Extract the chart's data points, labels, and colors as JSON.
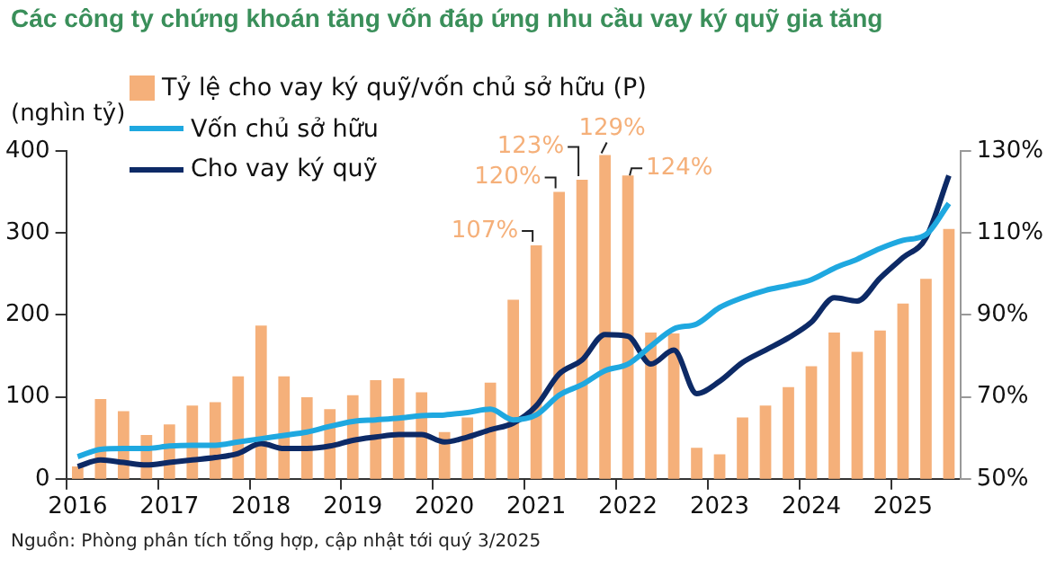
{
  "chart_data": {
    "type": "bar",
    "title": "Các công ty chứng khoán tăng vốn đáp ứng nhu cầu vay ký quỹ gia tăng",
    "ylabel": "(nghìn tỷ)",
    "annotations": [
      "Nguồn: Phòng phân tích tổng hợp, cập nhật tới quý 3/2025"
    ],
    "categories": [
      "2016",
      null,
      null,
      null,
      "2017",
      null,
      null,
      null,
      "2018",
      null,
      null,
      null,
      "2019",
      null,
      null,
      null,
      "2020",
      null,
      null,
      null,
      "2021",
      null,
      null,
      null,
      "2022",
      null,
      null,
      null,
      "2023",
      null,
      null,
      null,
      "2024",
      null,
      null,
      null,
      "2025",
      null,
      null
    ],
    "series": [
      {
        "name": "Tỷ lệ cho vay ký quỹ/vốn chủ sở hữu (P)",
        "axis": "y2",
        "color": "#f5b07a",
        "values": [
          53,
          69.5,
          66.5,
          60.7,
          63.3,
          67.9,
          68.7,
          75,
          87.4,
          75,
          69.9,
          67,
          70.4,
          74.1,
          74.5,
          71.1,
          61.4,
          65,
          73.5,
          93.7,
          107,
          120,
          123,
          129,
          124,
          85.7,
          85.5,
          57.6,
          56,
          65,
          67.9,
          72.4,
          77.5,
          85.7,
          81,
          86.2,
          92.8,
          98.8,
          111
        ],
        "value_labels": [
          null,
          null,
          null,
          null,
          null,
          null,
          null,
          null,
          null,
          null,
          null,
          null,
          null,
          null,
          null,
          null,
          null,
          null,
          null,
          null,
          "107%",
          "120%",
          "123%",
          "129%",
          "124%",
          null,
          null,
          null,
          null,
          null,
          null,
          null,
          null,
          null,
          null,
          null,
          null,
          null,
          null
        ]
      },
      {
        "name": "Vốn chủ sở hữu",
        "type": "line",
        "axis": "y",
        "color": "#1fa8e0",
        "values": [
          27,
          36,
          37,
          37,
          40,
          41,
          41,
          45,
          49,
          53,
          57,
          64,
          70,
          72,
          74,
          77,
          78,
          81,
          85,
          72,
          78,
          102,
          115,
          132,
          140,
          162,
          183,
          189,
          209,
          221,
          230,
          236,
          243,
          257,
          268,
          281,
          291,
          298,
          336
        ]
      },
      {
        "name": "Cho vay ký quỹ",
        "type": "line",
        "axis": "y",
        "color": "#0d2a66",
        "values": [
          15,
          23,
          20,
          17,
          20,
          23,
          26,
          31,
          43,
          37,
          37,
          40,
          47,
          51,
          54,
          54,
          45,
          51,
          60,
          68,
          89,
          128,
          145,
          176,
          174,
          140,
          157,
          104,
          119,
          142,
          157,
          172,
          191,
          221,
          217,
          245,
          270,
          294,
          370
        ]
      }
    ],
    "ylim": [
      0,
      400
    ],
    "yticks": [
      0,
      100,
      200,
      300,
      400
    ],
    "y2lim": [
      50,
      130
    ],
    "y2ticks": [
      {
        "value": 50,
        "label": "50%"
      },
      {
        "value": 70,
        "label": "70%"
      },
      {
        "value": 90,
        "label": "90%"
      },
      {
        "value": 110,
        "label": "110%"
      },
      {
        "value": 130,
        "label": "130%"
      }
    ],
    "grid": false,
    "legend": "top left",
    "marker": "none",
    "line_style": "solid"
  }
}
